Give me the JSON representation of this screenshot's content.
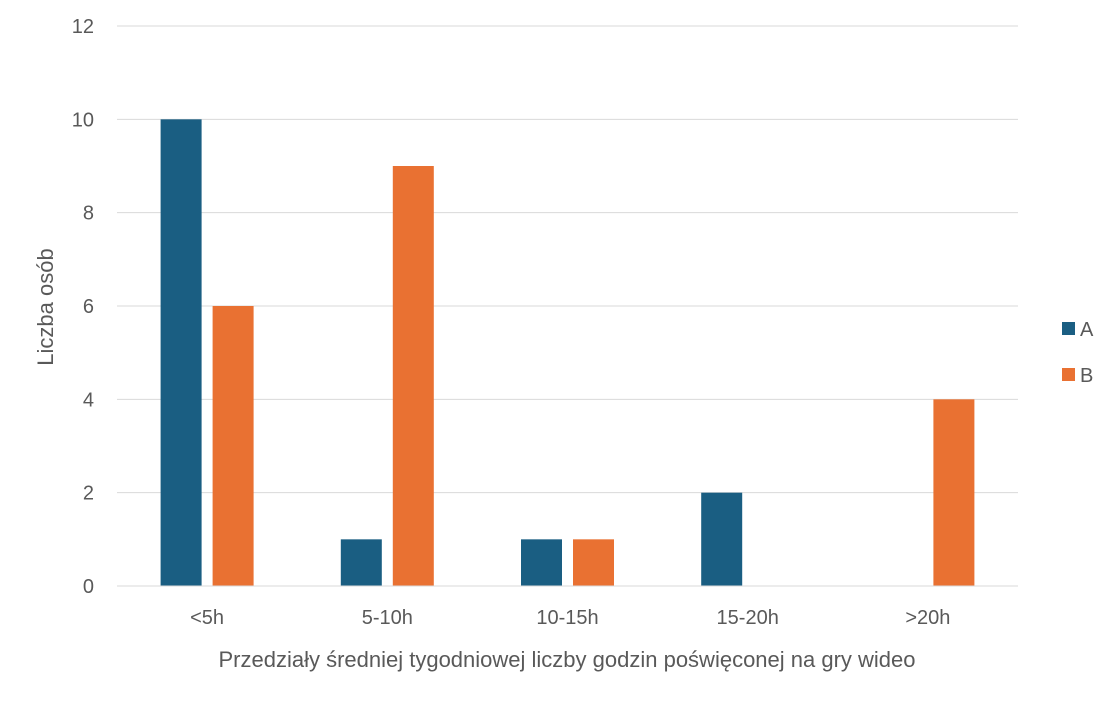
{
  "chart_data": {
    "type": "bar",
    "title": "",
    "xlabel": "Przedziały średniej tygodniowej liczby godzin poświęconej na gry wideo",
    "ylabel": "Liczba osób",
    "categories": [
      "<5h",
      "5-10h",
      "10-15h",
      "15-20h",
      ">20h"
    ],
    "series": [
      {
        "name": "A",
        "values": [
          10,
          1,
          1,
          2,
          0
        ],
        "color": "#1a5e82"
      },
      {
        "name": "B",
        "values": [
          6,
          9,
          1,
          0,
          4
        ],
        "color": "#e97132"
      }
    ],
    "ylim": [
      0,
      12
    ],
    "yticks": [
      0,
      2,
      4,
      6,
      8,
      10,
      12
    ],
    "grid": true,
    "legend_position": "right"
  }
}
